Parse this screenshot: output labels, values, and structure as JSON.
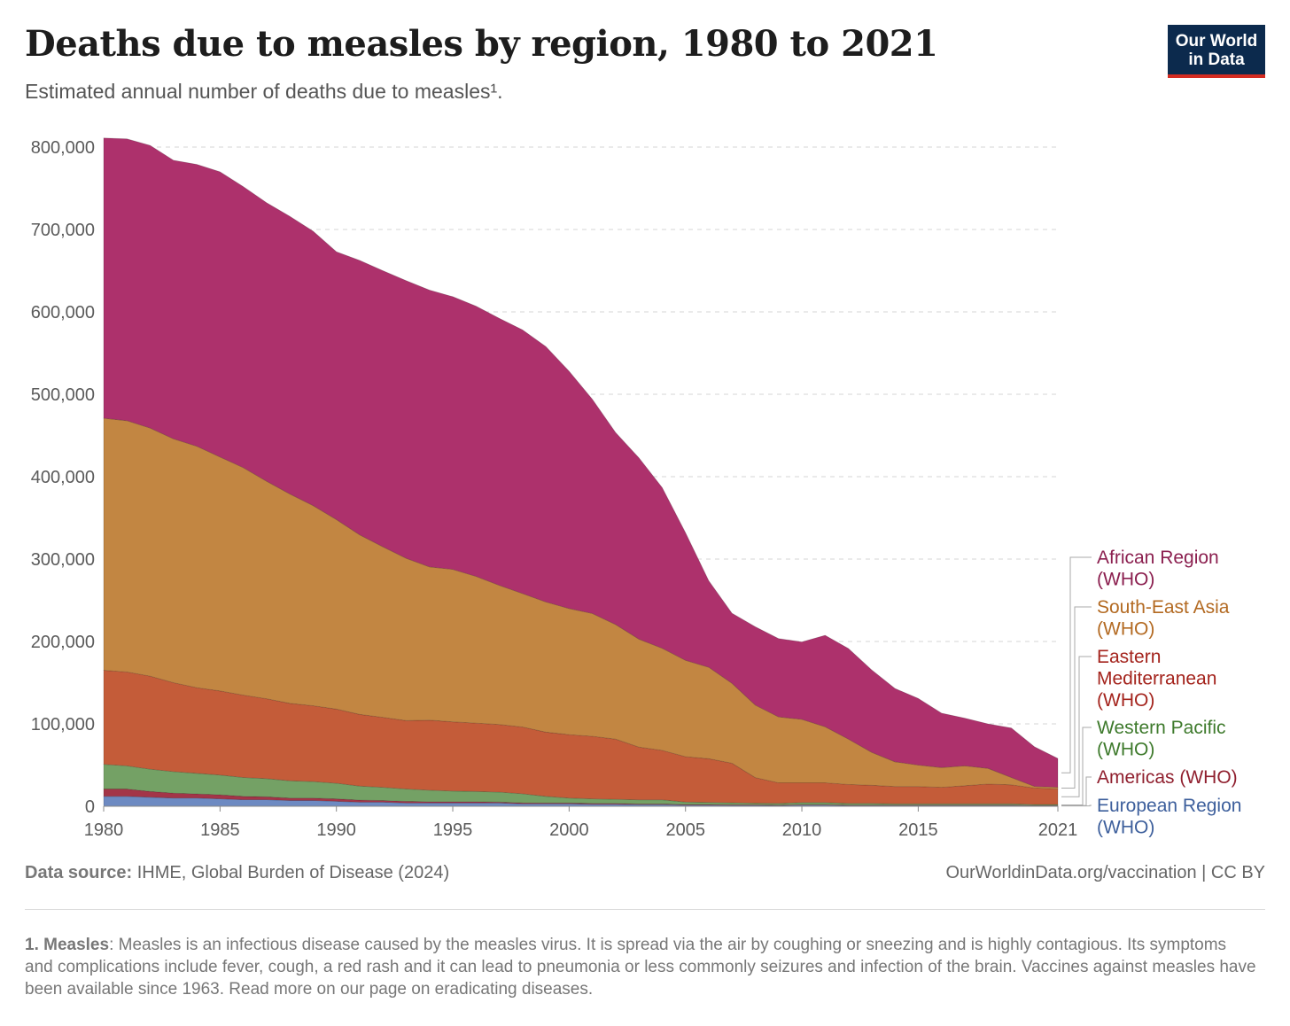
{
  "header": {
    "title": "Deaths due to measles by region, 1980 to 2021",
    "subtitle": "Estimated annual number of deaths due to measles¹.",
    "logo_line1": "Our World",
    "logo_line2": "in Data"
  },
  "footer": {
    "source_label": "Data source:",
    "source_text": "IHME, Global Burden of Disease (2024)",
    "url": "OurWorldinData.org/vaccination | CC BY",
    "note_label": "1. Measles",
    "note_text": ": Measles is an infectious disease caused by the measles virus. It is spread via the air by coughing or sneezing and is highly contagious. Its symptoms and complications include fever, cough, a red rash and it can lead to pneumonia or less commonly seizures and infection of the brain. Vaccines against measles have been available since 1963. Read more on our page on eradicating diseases."
  },
  "chart_data": {
    "type": "area",
    "stacked": true,
    "grid": "horizontal dashed",
    "legend_placement": "right",
    "ylim": [
      0,
      800000
    ],
    "xlim": [
      1980,
      2021
    ],
    "yticks": [
      0,
      100000,
      200000,
      300000,
      400000,
      500000,
      600000,
      700000,
      800000
    ],
    "ytick_labels": [
      "0",
      "100,000",
      "200,000",
      "300,000",
      "400,000",
      "500,000",
      "600,000",
      "700,000",
      "800,000"
    ],
    "xticks": [
      1980,
      1985,
      1990,
      1995,
      2000,
      2005,
      2010,
      2015,
      2021
    ],
    "xtick_labels": [
      "1980",
      "1985",
      "1990",
      "1995",
      "2000",
      "2005",
      "2010",
      "2015",
      "2021"
    ],
    "x": [
      1980,
      1981,
      1982,
      1983,
      1984,
      1985,
      1986,
      1987,
      1988,
      1989,
      1990,
      1991,
      1992,
      1993,
      1994,
      1995,
      1996,
      1997,
      1998,
      1999,
      2000,
      2001,
      2002,
      2003,
      2004,
      2005,
      2006,
      2007,
      2008,
      2009,
      2010,
      2011,
      2012,
      2013,
      2014,
      2015,
      2016,
      2017,
      2018,
      2019,
      2020,
      2021
    ],
    "series": [
      {
        "name": "European Region (WHO)",
        "color": "#6d8ac2",
        "values": [
          12000,
          12000,
          11000,
          10000,
          10000,
          9000,
          8000,
          8000,
          7000,
          7000,
          6000,
          5000,
          5000,
          4000,
          4000,
          4000,
          4000,
          4000,
          3000,
          3000,
          3000,
          2500,
          2500,
          2000,
          2000,
          1500,
          1500,
          1200,
          1200,
          1000,
          1500,
          1500,
          1000,
          1000,
          1000,
          1000,
          1000,
          1000,
          1000,
          1000,
          800,
          800
        ]
      },
      {
        "name": "Americas (WHO)",
        "color": "#a33548",
        "values": [
          9000,
          9000,
          7000,
          6000,
          5000,
          5000,
          4000,
          3500,
          3000,
          3000,
          3000,
          2500,
          2000,
          2000,
          1500,
          1500,
          1500,
          1200,
          1200,
          1000,
          1000,
          1000,
          1000,
          800,
          800,
          700,
          700,
          600,
          600,
          500,
          500,
          500,
          500,
          500,
          500,
          500,
          500,
          500,
          500,
          500,
          300,
          300
        ]
      },
      {
        "name": "Western Pacific (WHO)",
        "color": "#74a165",
        "values": [
          30000,
          28000,
          27000,
          26000,
          25000,
          24000,
          23000,
          22000,
          21000,
          20000,
          19000,
          17000,
          16000,
          15000,
          14000,
          13000,
          12500,
          12000,
          11000,
          8000,
          6000,
          5500,
          5000,
          5000,
          5000,
          3000,
          2500,
          2500,
          2000,
          2000,
          2500,
          2500,
          2000,
          2000,
          1500,
          1500,
          1500,
          1500,
          1500,
          1500,
          1000,
          1000
        ]
      },
      {
        "name": "Eastern Mediterranean (WHO)",
        "color": "#c45c39",
        "values": [
          114000,
          114000,
          113000,
          108000,
          104000,
          102000,
          100000,
          97000,
          94000,
          92000,
          90000,
          87000,
          85000,
          83000,
          85000,
          84000,
          83000,
          82000,
          81000,
          78000,
          77000,
          76000,
          73000,
          64000,
          60000,
          55000,
          53000,
          48000,
          31000,
          25000,
          24000,
          24000,
          23000,
          22000,
          21000,
          21000,
          20000,
          22000,
          24000,
          23000,
          20000,
          19000
        ]
      },
      {
        "name": "South-East Asia (WHO)",
        "color": "#c28642",
        "values": [
          306000,
          305000,
          301000,
          296000,
          293000,
          284000,
          276000,
          264000,
          254000,
          243000,
          230000,
          218000,
          207000,
          197000,
          186000,
          185000,
          178000,
          169000,
          162000,
          158000,
          153000,
          149000,
          139000,
          131000,
          124000,
          117000,
          111000,
          97000,
          88000,
          80000,
          77000,
          68000,
          55000,
          40000,
          30000,
          26000,
          24000,
          24000,
          19000,
          9000,
          2000,
          2000
        ]
      },
      {
        "name": "African Region (WHO)",
        "color": "#ad316c",
        "values": [
          340000,
          342000,
          343000,
          338000,
          342000,
          346000,
          341000,
          338000,
          337000,
          333000,
          325000,
          333000,
          335000,
          337000,
          336000,
          331000,
          328000,
          324000,
          320000,
          310000,
          288000,
          260000,
          233000,
          220000,
          195000,
          155000,
          105000,
          85000,
          95000,
          95000,
          94000,
          111000,
          110000,
          100000,
          89000,
          81000,
          66000,
          58000,
          54000,
          60000,
          48000,
          35000
        ]
      }
    ],
    "legend_labels": [
      {
        "text": "African Region\n(WHO)",
        "color": "#8b1f4f"
      },
      {
        "text": "South-East Asia\n(WHO)",
        "color": "#b36a22"
      },
      {
        "text": "Eastern\nMediterranean\n(WHO)",
        "color": "#a4241d"
      },
      {
        "text": "Western Pacific\n(WHO)",
        "color": "#3e7a2c"
      },
      {
        "text": "Americas (WHO)",
        "color": "#901f2e"
      },
      {
        "text": "European Region\n(WHO)",
        "color": "#3d5f9c"
      }
    ]
  }
}
